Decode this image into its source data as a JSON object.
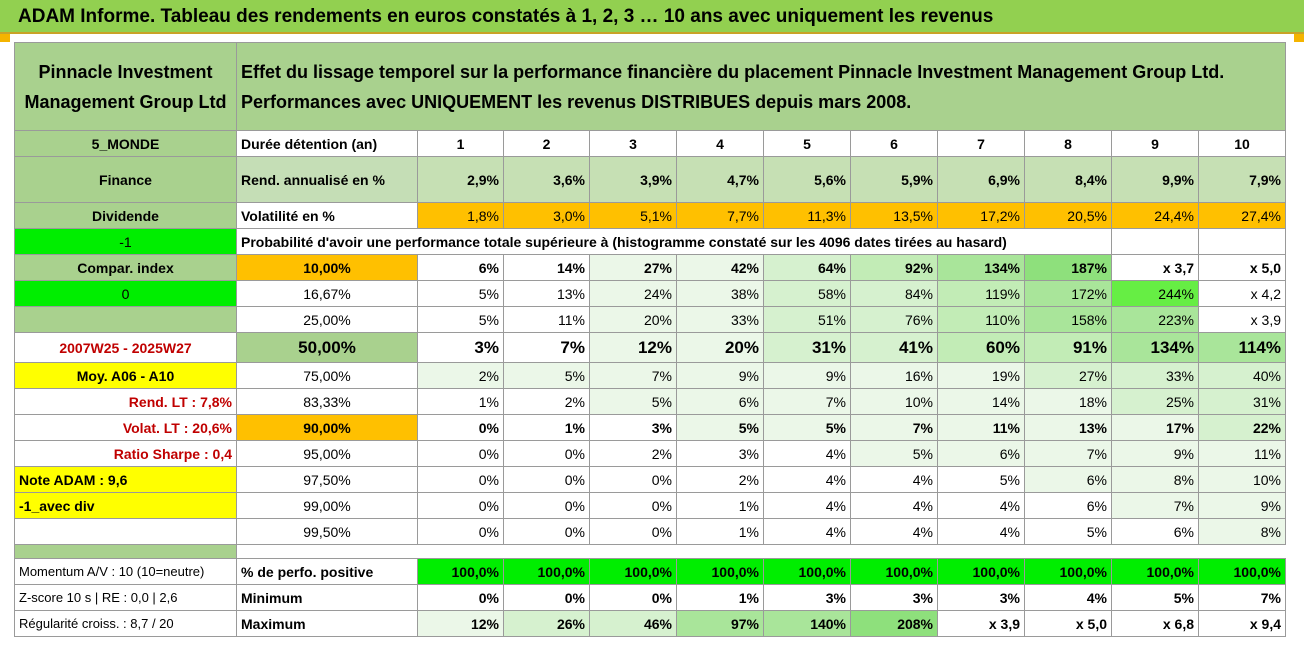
{
  "title": "ADAM Informe. Tableau des rendements en euros constatés à 1, 2, 3 … 10 ans avec uniquement les revenus",
  "fund_name": "Pinnacle Investment Management Group Ltd",
  "header_text": "Effet du lissage temporel sur la performance financière du placement Pinnacle Investment Management Group Ltd. Performances avec UNIQUEMENT les revenus DISTRIBUES depuis mars 2008.",
  "left": {
    "zone": "5_MONDE",
    "sector": "Finance",
    "type": "Dividende",
    "flag": "-1",
    "compar_label": "Compar. index",
    "compar_value": "0",
    "period": "2007W25 - 2025W27",
    "moy_label": "Moy. A06 - A10",
    "rend_lt": "Rend. LT :    7,8%",
    "volat_lt": "Volat. LT :    20,6%",
    "sharpe": "Ratio Sharpe :    0,4",
    "note": "Note ADAM : 9,6",
    "avec_div": "-1_avec div",
    "momentum": "Momentum A/V : 10 (10=neutre)",
    "zscore": "Z-score 10 s | RE : 0,0 | 2,6",
    "regularite": "Régularité croiss. : 8,7 / 20"
  },
  "row_labels": {
    "duree": "Durée détention (an)",
    "rend": "Rend. annualisé en %",
    "vol": "Volatilité en %",
    "proba": "Probabilité d'avoir une performance totale supérieure à (histogramme constaté sur les 4096 dates tirées au hasard)",
    "positive": "% de perfo. positive",
    "min": "Minimum",
    "max": "Maximum"
  },
  "years": [
    "1",
    "2",
    "3",
    "4",
    "5",
    "6",
    "7",
    "8",
    "9",
    "10"
  ],
  "rend": [
    "2,9%",
    "3,6%",
    "3,9%",
    "4,7%",
    "5,6%",
    "5,9%",
    "6,9%",
    "8,4%",
    "9,9%",
    "7,9%"
  ],
  "vol": [
    "1,8%",
    "3,0%",
    "5,1%",
    "7,7%",
    "11,3%",
    "13,5%",
    "17,2%",
    "20,5%",
    "24,4%",
    "27,4%"
  ],
  "percentiles": [
    {
      "threshold": "10,00%",
      "values": [
        "6%",
        "14%",
        "27%",
        "42%",
        "64%",
        "92%",
        "134%",
        "187%",
        "x 3,7",
        "x 5,0"
      ]
    },
    {
      "threshold": "16,67%",
      "values": [
        "5%",
        "13%",
        "24%",
        "38%",
        "58%",
        "84%",
        "119%",
        "172%",
        "244%",
        "x 4,2"
      ]
    },
    {
      "threshold": "25,00%",
      "values": [
        "5%",
        "11%",
        "20%",
        "33%",
        "51%",
        "76%",
        "110%",
        "158%",
        "223%",
        "x 3,9"
      ]
    },
    {
      "threshold": "50,00%",
      "values": [
        "3%",
        "7%",
        "12%",
        "20%",
        "31%",
        "41%",
        "60%",
        "91%",
        "134%",
        "114%"
      ]
    },
    {
      "threshold": "75,00%",
      "values": [
        "2%",
        "5%",
        "7%",
        "9%",
        "9%",
        "16%",
        "19%",
        "27%",
        "33%",
        "40%"
      ]
    },
    {
      "threshold": "83,33%",
      "values": [
        "1%",
        "2%",
        "5%",
        "6%",
        "7%",
        "10%",
        "14%",
        "18%",
        "25%",
        "31%"
      ]
    },
    {
      "threshold": "90,00%",
      "values": [
        "0%",
        "1%",
        "3%",
        "5%",
        "5%",
        "7%",
        "11%",
        "13%",
        "17%",
        "22%"
      ]
    },
    {
      "threshold": "95,00%",
      "values": [
        "0%",
        "0%",
        "2%",
        "3%",
        "4%",
        "5%",
        "6%",
        "7%",
        "9%",
        "11%"
      ]
    },
    {
      "threshold": "97,50%",
      "values": [
        "0%",
        "0%",
        "0%",
        "2%",
        "4%",
        "4%",
        "5%",
        "6%",
        "8%",
        "10%"
      ]
    },
    {
      "threshold": "99,00%",
      "values": [
        "0%",
        "0%",
        "0%",
        "1%",
        "4%",
        "4%",
        "4%",
        "6%",
        "7%",
        "9%"
      ]
    },
    {
      "threshold": "99,50%",
      "values": [
        "0%",
        "0%",
        "0%",
        "1%",
        "4%",
        "4%",
        "4%",
        "5%",
        "6%",
        "8%"
      ]
    }
  ],
  "positive": [
    "100,0%",
    "100,0%",
    "100,0%",
    "100,0%",
    "100,0%",
    "100,0%",
    "100,0%",
    "100,0%",
    "100,0%",
    "100,0%"
  ],
  "minimum": [
    "0%",
    "0%",
    "0%",
    "1%",
    "3%",
    "3%",
    "3%",
    "4%",
    "5%",
    "7%"
  ],
  "maximum": [
    "12%",
    "26%",
    "46%",
    "97%",
    "140%",
    "208%",
    "x 3,9",
    "x 5,0",
    "x 6,8",
    "x 9,4"
  ],
  "colors": {
    "title_bg": "#92d050",
    "label_green": "#a9d18e",
    "orange": "#ffc000",
    "yellow": "#ffff00",
    "bright_green": "#00ee00",
    "red_text": "#c00000"
  }
}
